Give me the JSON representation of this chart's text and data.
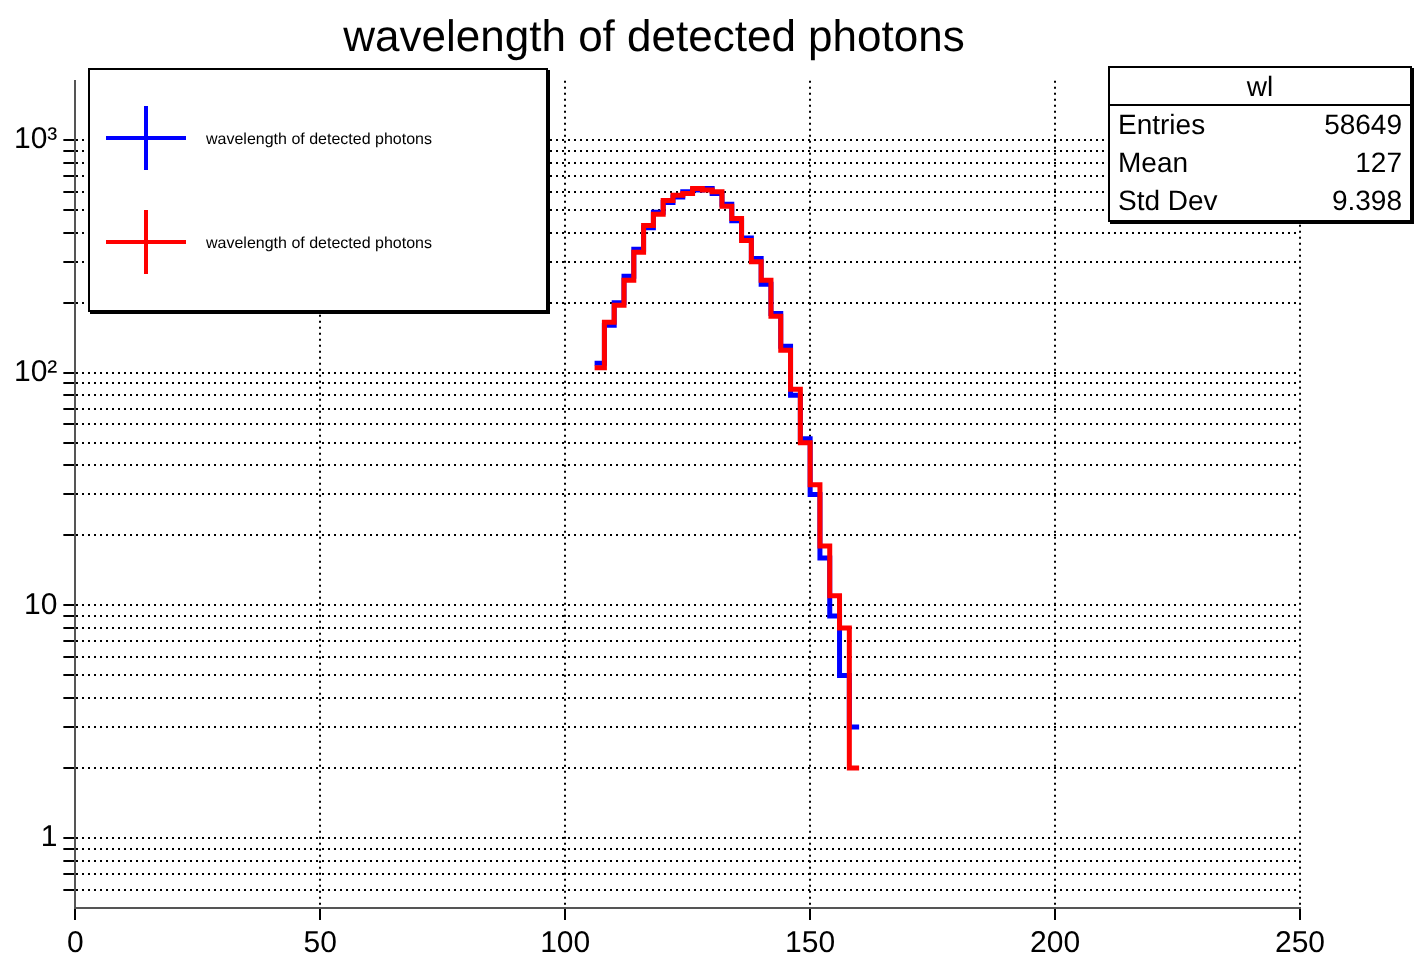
{
  "chart_data": {
    "type": "histogram",
    "title": "wavelength of detected photons",
    "bins": [
      106,
      108,
      110,
      112,
      114,
      116,
      118,
      120,
      122,
      124,
      126,
      128,
      130,
      132,
      134,
      136,
      138,
      140,
      142,
      144,
      146,
      148,
      150,
      152,
      154,
      156,
      158,
      160
    ],
    "series": [
      {
        "name": "wavelength of detected photons",
        "color": "#0000ff",
        "values": [
          110,
          160,
          200,
          260,
          340,
          420,
          490,
          540,
          570,
          600,
          610,
          620,
          590,
          530,
          450,
          380,
          310,
          240,
          180,
          130,
          80,
          52,
          30,
          16,
          9,
          5,
          3
        ]
      },
      {
        "name": "wavelength of detected photons",
        "color": "#ff0000",
        "values": [
          105,
          165,
          195,
          250,
          330,
          430,
          480,
          550,
          580,
          590,
          620,
          610,
          600,
          520,
          460,
          370,
          300,
          250,
          175,
          125,
          85,
          50,
          33,
          18,
          11,
          8,
          2
        ]
      }
    ],
    "log": "y",
    "xlim": [
      0,
      250
    ],
    "ylim": [
      0.5,
      1800
    ],
    "xticks": [
      0,
      50,
      100,
      150,
      200,
      250
    ],
    "yticks": [
      {
        "value": 0.6,
        "label": null
      },
      {
        "value": 0.7,
        "label": null
      },
      {
        "value": 0.8,
        "label": null
      },
      {
        "value": 0.9,
        "label": null
      },
      1,
      {
        "value": 2,
        "label": null
      },
      {
        "value": 3,
        "label": null
      },
      {
        "value": 4,
        "label": null
      },
      {
        "value": 5,
        "label": null
      },
      {
        "value": 6,
        "label": null
      },
      {
        "value": 7,
        "label": null
      },
      {
        "value": 8,
        "label": null
      },
      {
        "value": 9,
        "label": null
      },
      10,
      {
        "value": 20,
        "label": null
      },
      {
        "value": 30,
        "label": null
      },
      {
        "value": 40,
        "label": null
      },
      {
        "value": 50,
        "label": null
      },
      {
        "value": 60,
        "label": null
      },
      {
        "value": 70,
        "label": null
      },
      {
        "value": 80,
        "label": null
      },
      {
        "value": 90,
        "label": null
      },
      {
        "value": 100,
        "label": "10²"
      },
      {
        "value": 200,
        "label": null
      },
      {
        "value": 300,
        "label": null
      },
      {
        "value": 400,
        "label": null
      },
      {
        "value": 500,
        "label": null
      },
      {
        "value": 600,
        "label": null
      },
      {
        "value": 700,
        "label": null
      },
      {
        "value": 800,
        "label": null
      },
      {
        "value": 900,
        "label": null
      },
      {
        "value": 1000,
        "label": "10³"
      }
    ],
    "grid": true,
    "legend": "top left",
    "annotations": [
      "wl",
      "Entries",
      "58649",
      "Mean",
      "127",
      "Std Dev",
      "9.398"
    ]
  }
}
